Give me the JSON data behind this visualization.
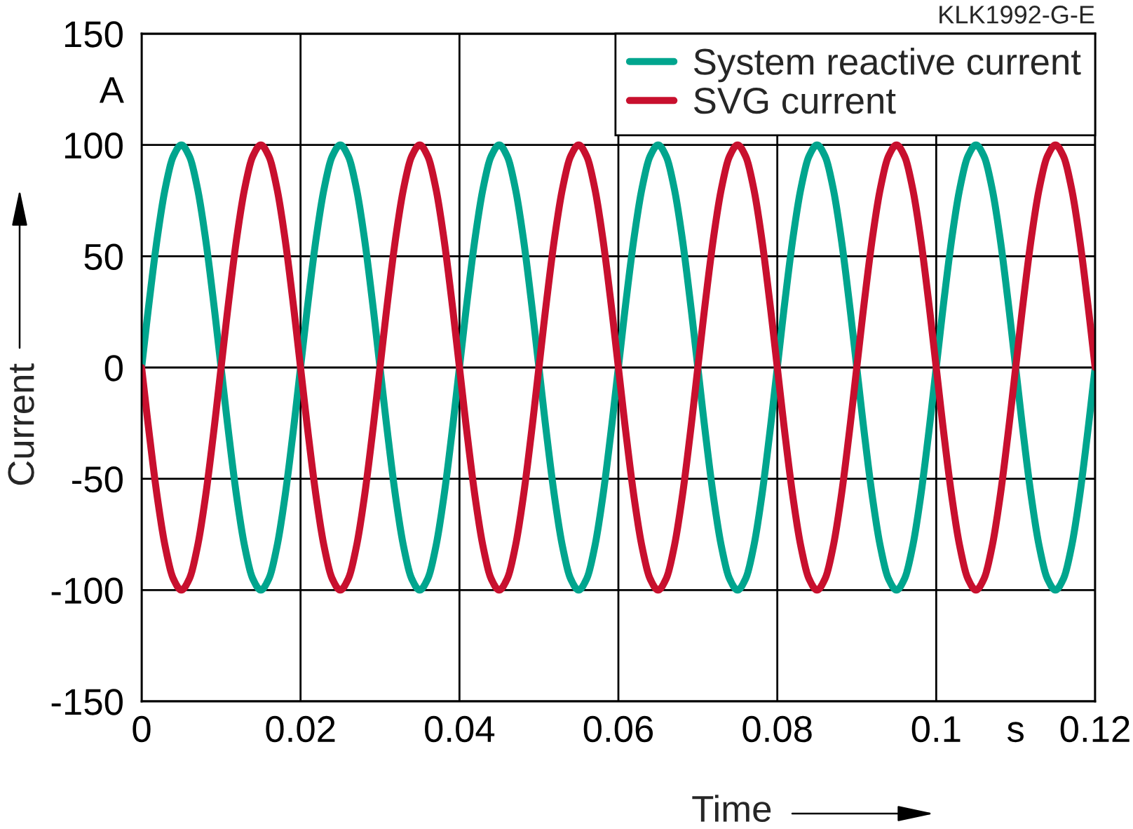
{
  "chart_data": {
    "type": "line",
    "xlabel": "Time",
    "ylabel": "Current",
    "annotations": [
      "KLK1992-G-E"
    ],
    "x": [
      0,
      0.001,
      0.002,
      0.003,
      0.004,
      0.005,
      0.006,
      0.007,
      0.008,
      0.009,
      0.01,
      0.011,
      0.012,
      0.013,
      0.014,
      0.015,
      0.016,
      0.017,
      0.018,
      0.019,
      0.02,
      0.021,
      0.022,
      0.023,
      0.024,
      0.025,
      0.026,
      0.027,
      0.028,
      0.029,
      0.03,
      0.031,
      0.032,
      0.033,
      0.034,
      0.035,
      0.036,
      0.037,
      0.038,
      0.039,
      0.04,
      0.041,
      0.042,
      0.043,
      0.044,
      0.045,
      0.046,
      0.047,
      0.048,
      0.049,
      0.05,
      0.051,
      0.052,
      0.053,
      0.054,
      0.055,
      0.056,
      0.057,
      0.058,
      0.059,
      0.06,
      0.061,
      0.062,
      0.063,
      0.064,
      0.065,
      0.066,
      0.067,
      0.068,
      0.069,
      0.07,
      0.071,
      0.072,
      0.073,
      0.074,
      0.075,
      0.076,
      0.077,
      0.078,
      0.079,
      0.08,
      0.081,
      0.082,
      0.083,
      0.084,
      0.085,
      0.086,
      0.087,
      0.088,
      0.089,
      0.09,
      0.091,
      0.092,
      0.093,
      0.094,
      0.095,
      0.096,
      0.097,
      0.098,
      0.099,
      0.1,
      0.101,
      0.102,
      0.103,
      0.104,
      0.105,
      0.106,
      0.107,
      0.108,
      0.109,
      0.11,
      0.111,
      0.112,
      0.113,
      0.114,
      0.115,
      0.116,
      0.117,
      0.118,
      0.119,
      0.12
    ],
    "series": [
      {
        "name": "System reactive current",
        "color": "#00a58e",
        "values": [
          0,
          31,
          59,
          81,
          95,
          100,
          95,
          81,
          59,
          31,
          0,
          -31,
          -59,
          -81,
          -95,
          -100,
          -95,
          -81,
          -59,
          -31,
          0,
          31,
          59,
          81,
          95,
          100,
          95,
          81,
          59,
          31,
          0,
          -31,
          -59,
          -81,
          -95,
          -100,
          -95,
          -81,
          -59,
          -31,
          0,
          31,
          59,
          81,
          95,
          100,
          95,
          81,
          59,
          31,
          0,
          -31,
          -59,
          -81,
          -95,
          -100,
          -95,
          -81,
          -59,
          -31,
          0,
          31,
          59,
          81,
          95,
          100,
          95,
          81,
          59,
          31,
          0,
          -31,
          -59,
          -81,
          -95,
          -100,
          -95,
          -81,
          -59,
          -31,
          0,
          31,
          59,
          81,
          95,
          100,
          95,
          81,
          59,
          31,
          0,
          -31,
          -59,
          -81,
          -95,
          -100,
          -95,
          -81,
          -59,
          -31,
          0,
          31,
          59,
          81,
          95,
          100,
          95,
          81,
          59,
          31,
          0,
          -31,
          -59,
          -81,
          -95,
          -100,
          -95,
          -81,
          -59,
          -31,
          0
        ]
      },
      {
        "name": "SVG current",
        "color": "#c8102e",
        "values": [
          0,
          -31,
          -59,
          -81,
          -95,
          -100,
          -95,
          -81,
          -59,
          -31,
          0,
          31,
          59,
          81,
          95,
          100,
          95,
          81,
          59,
          31,
          0,
          -31,
          -59,
          -81,
          -95,
          -100,
          -95,
          -81,
          -59,
          -31,
          0,
          31,
          59,
          81,
          95,
          100,
          95,
          81,
          59,
          31,
          0,
          -31,
          -59,
          -81,
          -95,
          -100,
          -95,
          -81,
          -59,
          -31,
          0,
          31,
          59,
          81,
          95,
          100,
          95,
          81,
          59,
          31,
          0,
          -31,
          -59,
          -81,
          -95,
          -100,
          -95,
          -81,
          -59,
          -31,
          0,
          31,
          59,
          81,
          95,
          100,
          95,
          81,
          59,
          31,
          0,
          -31,
          -59,
          -81,
          -95,
          -100,
          -95,
          -81,
          -59,
          -31,
          0,
          31,
          59,
          81,
          95,
          100,
          95,
          81,
          59,
          31,
          0,
          -31,
          -59,
          -81,
          -95,
          -100,
          -95,
          -81,
          -59,
          -31,
          0,
          31,
          59,
          81,
          95,
          100,
          95,
          81,
          59,
          31,
          0
        ]
      }
    ],
    "xlim": [
      0,
      0.12
    ],
    "xticks": [
      0,
      0.02,
      0.04,
      0.06,
      0.08,
      0.1,
      {
        "value": 0.11,
        "label": "s"
      },
      0.12
    ],
    "ylim": [
      -150,
      150
    ],
    "yticks": [
      -150,
      -100,
      -50,
      0,
      50,
      100,
      {
        "value": 125,
        "label": "A"
      },
      150
    ],
    "grid": true,
    "legend": "top right",
    "marker": "none",
    "line_style": "solid"
  }
}
